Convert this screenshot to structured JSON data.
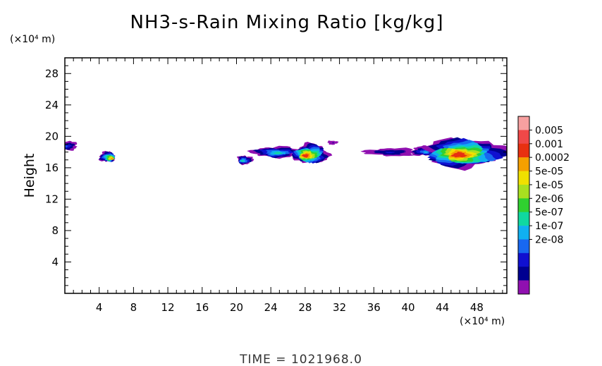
{
  "chart_data": {
    "type": "heatmap",
    "title": "NH3-s-Rain Mixing Ratio [kg/kg]",
    "ylabel": "Height",
    "xlabel": "",
    "y_unit_label": "(×10⁴ m)",
    "x_unit_label": "(×10⁴ m)",
    "xlim": [
      0,
      51.5
    ],
    "ylim": [
      0,
      30
    ],
    "x_ticks": [
      4,
      8,
      12,
      16,
      20,
      24,
      28,
      32,
      36,
      40,
      44,
      48
    ],
    "y_ticks": [
      4,
      8,
      12,
      16,
      20,
      24,
      28
    ],
    "grid": false,
    "time_label": "TIME  =  1021968.0",
    "colorbar": {
      "labels": [
        "0.005",
        "0.001",
        "0.0002",
        "5e-05",
        "1e-05",
        "2e-06",
        "5e-07",
        "1e-07",
        "2e-08"
      ],
      "colors": [
        "#f7a0a0",
        "#f04848",
        "#e83010",
        "#f5a000",
        "#f0e000",
        "#a8e020",
        "#30d030",
        "#10d8a0",
        "#10b0f0",
        "#1868f0",
        "#1010d0",
        "#000090",
        "#9010b0"
      ]
    },
    "clouds": [
      {
        "name": "c1",
        "x": 0.3,
        "y": 18.8,
        "rx": 1.2,
        "ry": 0.55,
        "peak": 9
      },
      {
        "name": "c2",
        "x": 4.9,
        "y": 17.4,
        "rx": 0.9,
        "ry": 0.65,
        "peak": 3
      },
      {
        "name": "c3",
        "x": 21.0,
        "y": 17.0,
        "rx": 0.9,
        "ry": 0.55,
        "peak": 7
      },
      {
        "name": "c4",
        "x": 24.5,
        "y": 18.0,
        "rx": 2.6,
        "ry": 0.7,
        "peak": 7
      },
      {
        "name": "c5",
        "x": 28.7,
        "y": 17.8,
        "rx": 2.0,
        "ry": 1.2,
        "peak": 2
      },
      {
        "name": "c6",
        "x": 31.2,
        "y": 19.2,
        "rx": 0.6,
        "ry": 0.25,
        "peak": 11
      },
      {
        "name": "c7",
        "x": 38.0,
        "y": 18.0,
        "rx": 3.0,
        "ry": 0.5,
        "peak": 10
      },
      {
        "name": "c8",
        "x": 41.8,
        "y": 18.1,
        "rx": 1.5,
        "ry": 0.6,
        "peak": 8
      },
      {
        "name": "c9",
        "x": 46.6,
        "y": 17.9,
        "rx": 4.5,
        "ry": 1.8,
        "peak": 2
      }
    ]
  }
}
